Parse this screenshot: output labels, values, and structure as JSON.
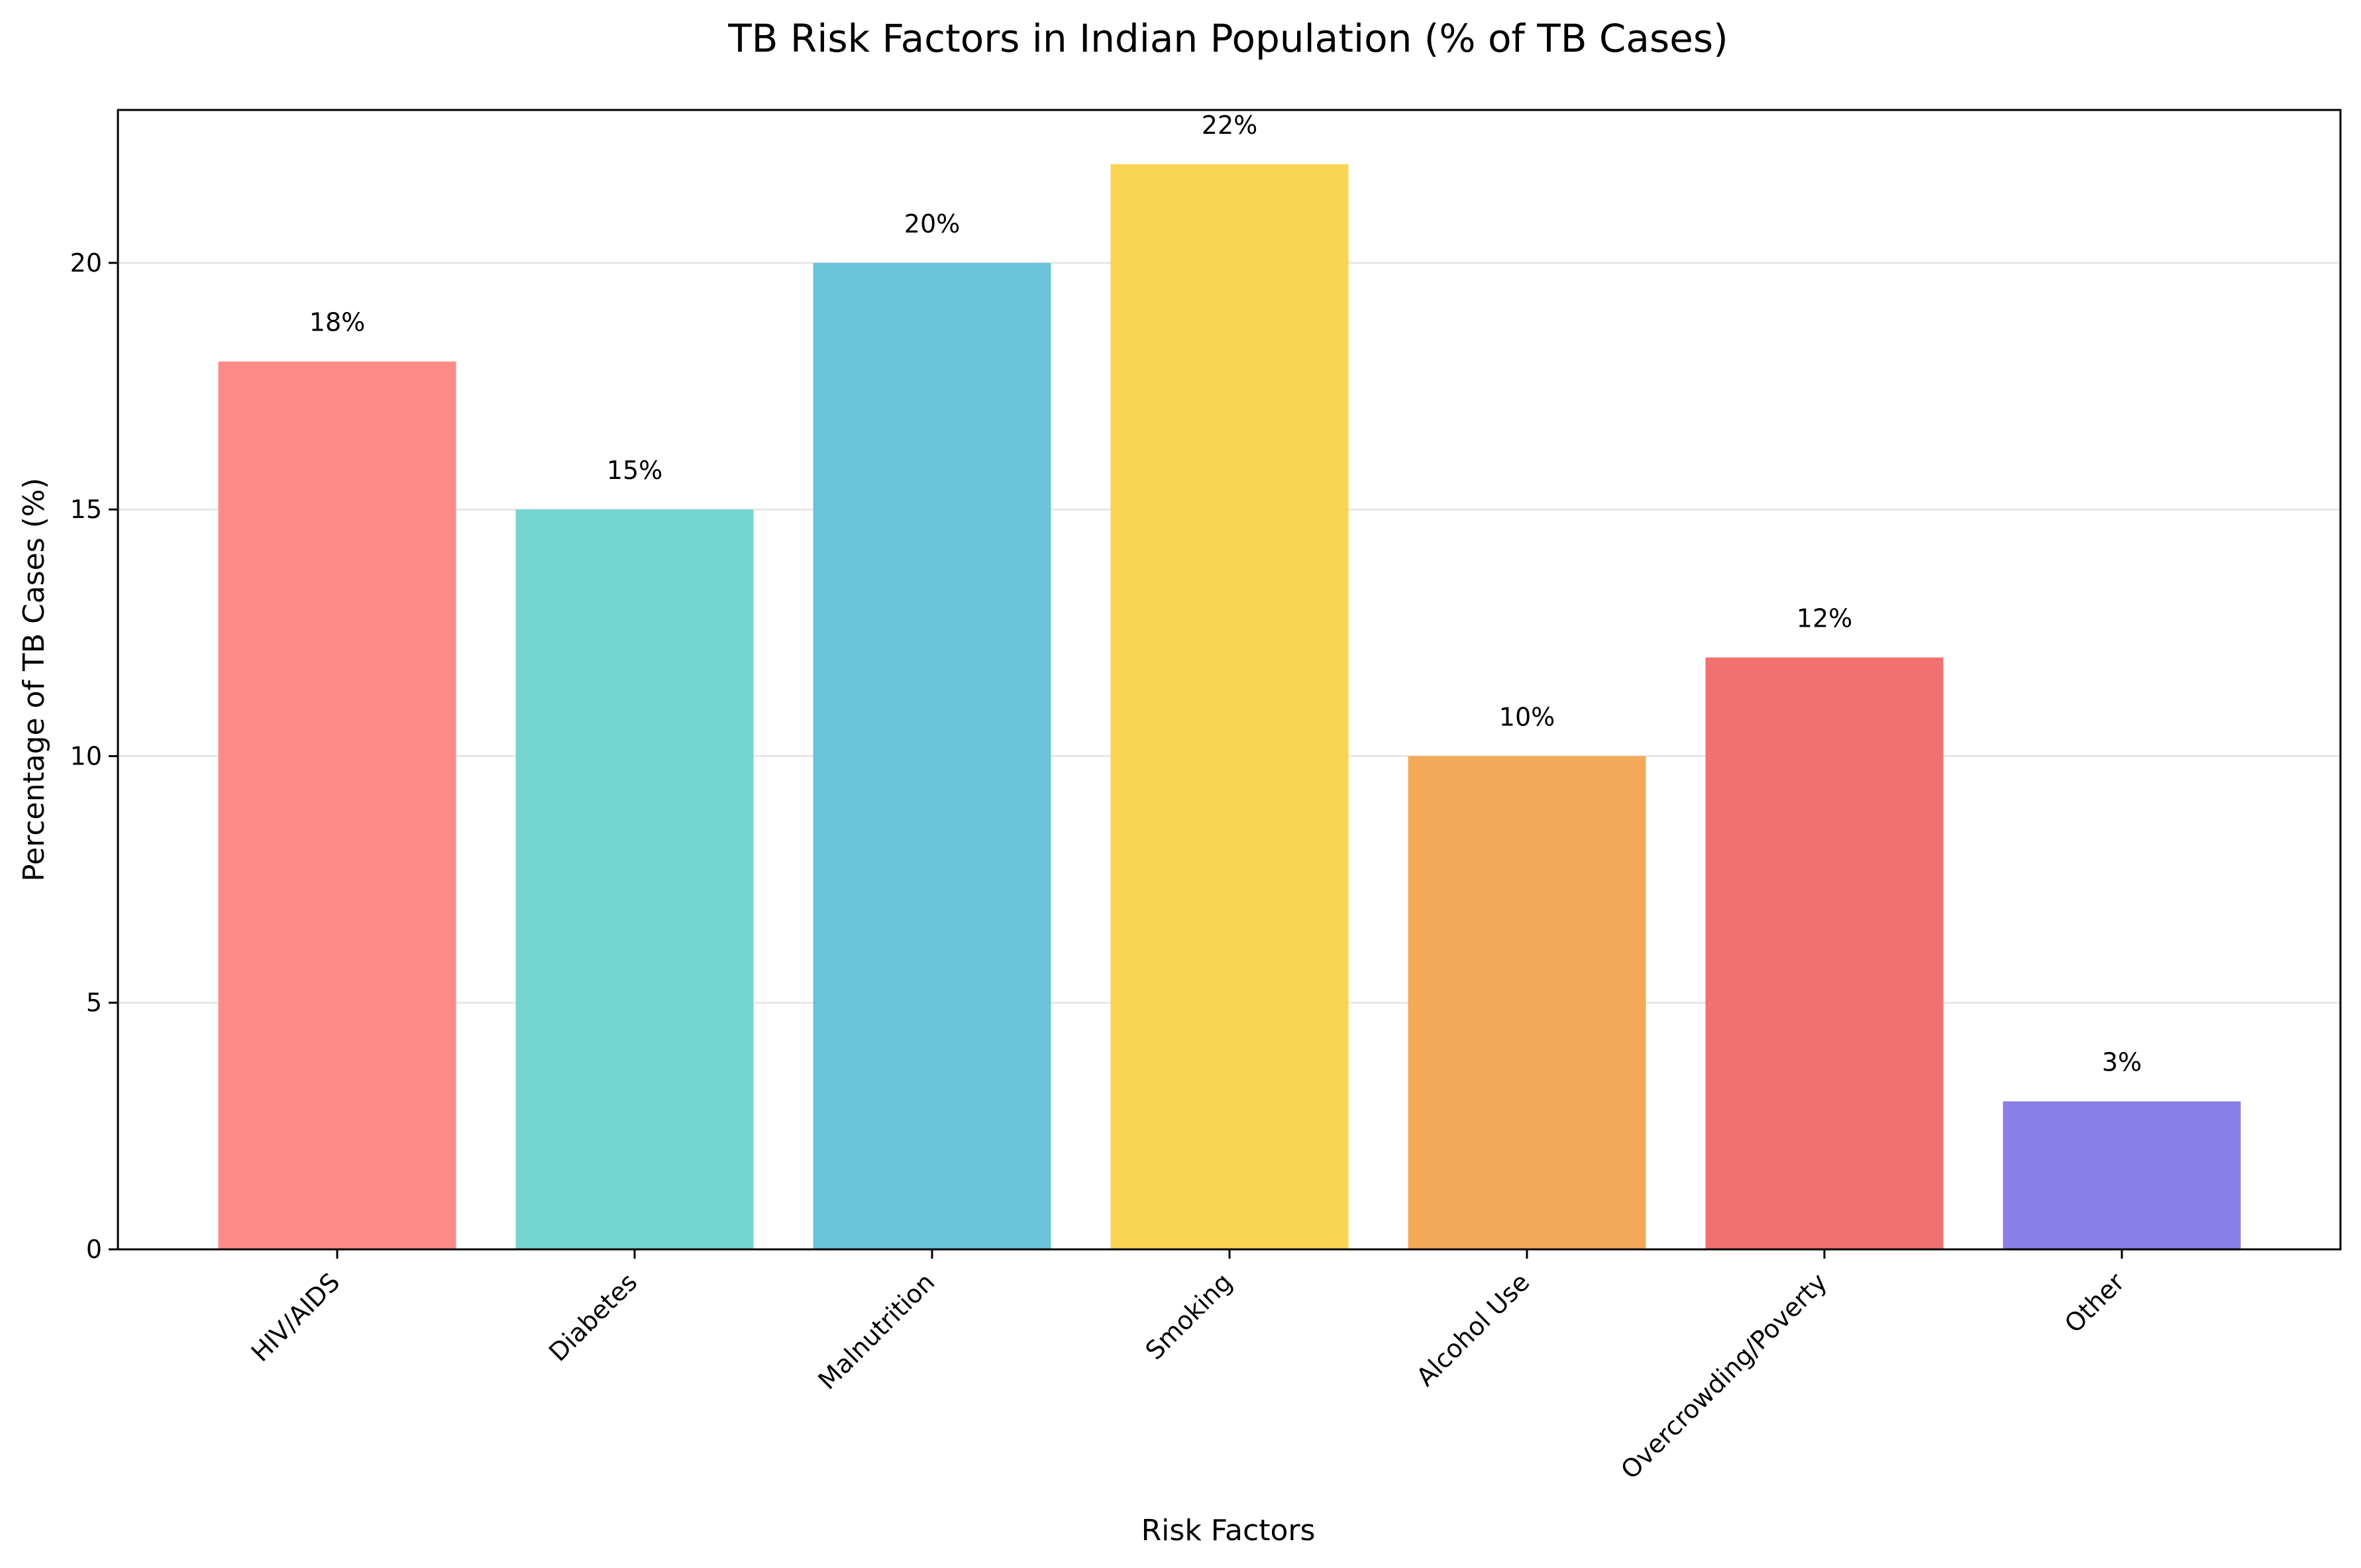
{
  "chart_data": {
    "type": "bar",
    "title": "TB Risk Factors in Indian Population (% of TB Cases)",
    "xlabel": "Risk Factors",
    "ylabel": "Percentage of TB Cases (%)",
    "categories": [
      "HIV/AIDS",
      "Diabetes",
      "Malnutrition",
      "Smoking",
      "Alcohol Use",
      "Overcrowding/Poverty",
      "Other"
    ],
    "values": [
      18,
      15,
      20,
      22,
      10,
      12,
      3
    ],
    "data_labels": [
      "18%",
      "15%",
      "20%",
      "22%",
      "10%",
      "12%",
      "3%"
    ],
    "colors": [
      "#FF8A8A",
      "#75D6D0",
      "#6BC3D9",
      "#F9D352",
      "#F3A957",
      "#EF7270",
      "#8A7EE8"
    ],
    "yticks": [
      0,
      5,
      10,
      15,
      20
    ],
    "ylim": [
      0,
      23.1
    ],
    "grid": "horizontal"
  }
}
